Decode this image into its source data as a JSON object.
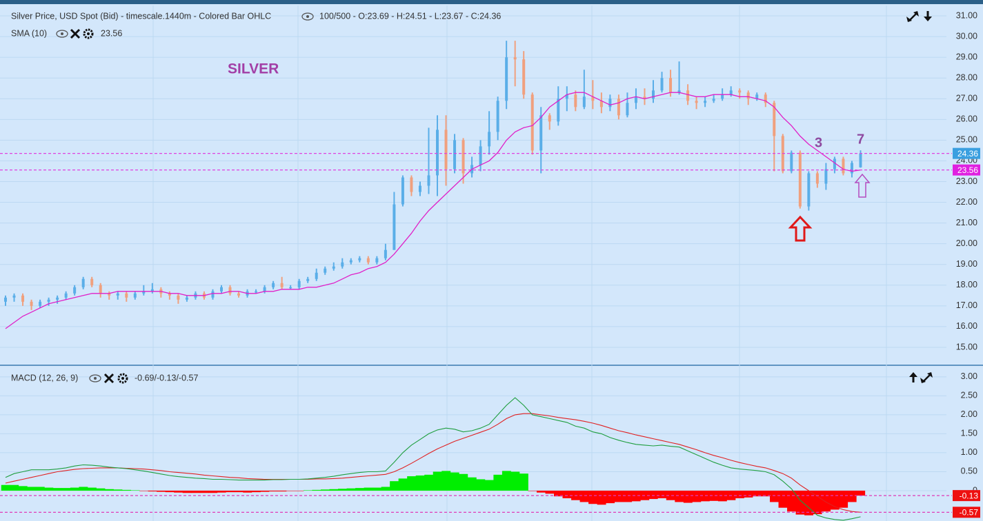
{
  "chart_data": [
    {
      "type": "ohlc",
      "title": "Silver Price, USD Spot (Bid) - timescale.1440m - Colored Bar OHLC",
      "subtitle": "100/500 - O:23.69 - H:24.51 - L:23.67 - C:24.36",
      "annotations": [
        "SILVER",
        "3",
        "7"
      ],
      "ylim": [
        14.2,
        31.5
      ],
      "yticks": [
        {
          "value": 15,
          "label": "15.00"
        },
        {
          "value": 16,
          "label": "16.00"
        },
        {
          "value": 17,
          "label": "17.00"
        },
        {
          "value": 18,
          "label": "18.00"
        },
        {
          "value": 19,
          "label": "19.00"
        },
        {
          "value": 20,
          "label": "20.00"
        },
        {
          "value": 21,
          "label": "21.00"
        },
        {
          "value": 22,
          "label": "22.00"
        },
        {
          "value": 23,
          "label": "23.00"
        },
        {
          "value": 24,
          "label": "24.00"
        },
        {
          "value": 25,
          "label": "25.00"
        },
        {
          "value": 26,
          "label": "26.00"
        },
        {
          "value": 27,
          "label": "27.00"
        },
        {
          "value": 28,
          "label": "28.00"
        },
        {
          "value": 29,
          "label": "29.00"
        },
        {
          "value": 30,
          "label": "30.00"
        },
        {
          "value": 31,
          "label": "31.00"
        }
      ],
      "grid": true,
      "series": [
        {
          "up_color": "#5aaee8",
          "down_color": "#f0a07e",
          "open": [
            17.2,
            17.4,
            17.5,
            17.2,
            17.0,
            17.2,
            17.3,
            17.4,
            17.6,
            17.9,
            18.3,
            18.0,
            17.6,
            17.5,
            17.6,
            17.4,
            17.6,
            17.7,
            17.8,
            17.6,
            17.5,
            17.3,
            17.4,
            17.6,
            17.4,
            17.7,
            17.9,
            17.6,
            17.5,
            17.7,
            17.7,
            17.9,
            18.1,
            17.9,
            17.9,
            18.2,
            18.3,
            18.6,
            18.8,
            18.9,
            19.1,
            19.2,
            19.3,
            19.1,
            19.3,
            19.7,
            21.9,
            23.2,
            22.5,
            22.8,
            23.3,
            25.5,
            23.6,
            25.0,
            23.4,
            23.8,
            24.7,
            25.4,
            26.9,
            29.0,
            28.9,
            27.2,
            24.5,
            26.2,
            25.9,
            27.0,
            27.2,
            26.6,
            27.1,
            26.9,
            26.6,
            27.0,
            26.2,
            26.8,
            27.1,
            27.0,
            27.4,
            28.0,
            27.3,
            27.4,
            26.9,
            26.8,
            26.9,
            27.0,
            27.2,
            27.4,
            27.3,
            27.0,
            27.2,
            26.8,
            25.2,
            23.5,
            24.4,
            21.8,
            23.4,
            22.9,
            23.6,
            24.1,
            23.4,
            23.69
          ],
          "high": [
            17.5,
            17.6,
            17.6,
            17.3,
            17.3,
            17.4,
            17.5,
            17.7,
            18.0,
            18.4,
            18.4,
            18.1,
            17.7,
            17.7,
            17.7,
            17.7,
            18.0,
            18.1,
            17.9,
            17.7,
            17.6,
            17.5,
            17.7,
            17.7,
            17.8,
            18.0,
            18.0,
            17.7,
            17.8,
            17.8,
            18.0,
            18.2,
            18.4,
            18.0,
            18.3,
            18.4,
            18.8,
            18.9,
            19.1,
            19.3,
            19.3,
            19.4,
            19.4,
            19.4,
            20.0,
            22.5,
            23.3,
            23.3,
            23.0,
            25.6,
            26.2,
            26.2,
            25.3,
            25.1,
            24.2,
            25.0,
            26.4,
            27.1,
            29.8,
            29.8,
            29.3,
            27.3,
            26.6,
            26.3,
            27.6,
            27.6,
            27.4,
            28.4,
            27.9,
            27.3,
            27.2,
            27.2,
            27.3,
            27.5,
            27.5,
            27.9,
            28.3,
            28.4,
            28.8,
            27.7,
            27.1,
            27.1,
            27.2,
            27.5,
            27.6,
            27.5,
            27.4,
            27.3,
            27.3,
            26.9,
            25.3,
            24.5,
            24.5,
            23.5,
            23.5,
            23.9,
            24.2,
            24.2,
            24.0,
            24.51
          ],
          "low": [
            17.0,
            17.2,
            17.0,
            16.8,
            16.9,
            17.0,
            17.1,
            17.3,
            17.5,
            17.8,
            17.9,
            17.4,
            17.3,
            17.3,
            17.2,
            17.3,
            17.5,
            17.6,
            17.4,
            17.3,
            17.1,
            17.2,
            17.3,
            17.3,
            17.3,
            17.6,
            17.5,
            17.4,
            17.4,
            17.6,
            17.6,
            17.8,
            17.8,
            17.8,
            17.8,
            18.1,
            18.2,
            18.5,
            18.7,
            18.8,
            19.0,
            19.1,
            19.0,
            19.0,
            19.2,
            19.7,
            21.8,
            22.3,
            22.3,
            22.4,
            22.3,
            22.8,
            23.4,
            22.9,
            23.2,
            23.5,
            24.3,
            25.0,
            26.5,
            27.6,
            27.0,
            24.3,
            23.4,
            25.5,
            25.7,
            26.4,
            26.4,
            26.5,
            26.5,
            26.3,
            26.4,
            26.0,
            26.1,
            26.5,
            26.7,
            26.8,
            27.3,
            27.1,
            27.2,
            26.7,
            26.5,
            26.6,
            26.8,
            26.9,
            27.1,
            27.0,
            26.7,
            26.9,
            26.6,
            23.5,
            23.4,
            23.4,
            21.7,
            21.6,
            22.7,
            22.6,
            23.4,
            23.3,
            23.2,
            23.67
          ],
          "close": [
            17.4,
            17.5,
            17.2,
            17.0,
            17.2,
            17.3,
            17.4,
            17.6,
            17.9,
            18.3,
            18.0,
            17.6,
            17.5,
            17.6,
            17.4,
            17.6,
            17.7,
            17.8,
            17.6,
            17.5,
            17.3,
            17.4,
            17.6,
            17.4,
            17.7,
            17.9,
            17.6,
            17.5,
            17.7,
            17.7,
            17.9,
            18.1,
            17.9,
            17.9,
            18.2,
            18.3,
            18.6,
            18.8,
            18.9,
            19.1,
            19.2,
            19.3,
            19.1,
            19.3,
            19.7,
            21.9,
            23.2,
            22.5,
            22.8,
            23.3,
            25.5,
            23.6,
            25.0,
            23.4,
            23.8,
            24.7,
            25.4,
            26.9,
            29.0,
            28.9,
            27.2,
            24.5,
            26.2,
            25.9,
            27.0,
            27.2,
            26.6,
            27.1,
            26.9,
            26.6,
            27.0,
            26.2,
            26.8,
            27.1,
            27.0,
            27.4,
            28.0,
            27.3,
            27.4,
            26.9,
            26.8,
            26.9,
            27.0,
            27.2,
            27.4,
            27.3,
            27.0,
            27.2,
            26.8,
            25.2,
            23.5,
            24.4,
            21.8,
            23.4,
            22.9,
            23.6,
            24.1,
            23.4,
            23.9,
            24.36
          ]
        },
        {
          "name": "SMA (10)",
          "color": "#e020c8",
          "values": [
            15.9,
            16.2,
            16.5,
            16.7,
            16.9,
            17.1,
            17.2,
            17.3,
            17.4,
            17.5,
            17.6,
            17.6,
            17.6,
            17.7,
            17.7,
            17.7,
            17.7,
            17.7,
            17.7,
            17.6,
            17.6,
            17.5,
            17.5,
            17.5,
            17.6,
            17.6,
            17.7,
            17.7,
            17.6,
            17.6,
            17.7,
            17.7,
            17.8,
            17.8,
            17.8,
            17.9,
            17.9,
            18.0,
            18.1,
            18.3,
            18.5,
            18.6,
            18.8,
            18.9,
            19.1,
            19.5,
            20.0,
            20.5,
            21.1,
            21.6,
            22.0,
            22.4,
            22.8,
            23.2,
            23.6,
            23.8,
            24.0,
            24.4,
            25.0,
            25.4,
            25.6,
            25.7,
            26.1,
            26.6,
            26.9,
            27.2,
            27.3,
            27.3,
            27.1,
            26.9,
            26.7,
            26.8,
            27.0,
            27.1,
            27.0,
            27.1,
            27.2,
            27.3,
            27.3,
            27.2,
            27.1,
            27.1,
            27.2,
            27.2,
            27.2,
            27.1,
            27.1,
            27.0,
            26.9,
            26.6,
            26.1,
            25.7,
            25.2,
            24.8,
            24.5,
            24.2,
            23.9,
            23.6,
            23.5,
            23.56
          ]
        }
      ],
      "price_levels": [
        {
          "value": 24.36,
          "color": "#3a9fe0"
        },
        {
          "value": 23.56,
          "color": "#e020e0"
        }
      ]
    },
    {
      "type": "macd",
      "title": "MACD (12, 26, 9)",
      "subtitle": "-0.69/-0.13/-0.57",
      "ylim": [
        -0.8,
        3.27
      ],
      "yticks": [
        0,
        {
          "value": 0.5,
          "label": "0.50"
        },
        {
          "value": 1,
          "label": "1.00"
        },
        {
          "value": 1.5,
          "label": "1.50"
        },
        {
          "value": 2,
          "label": "2.00"
        },
        {
          "value": 2.5,
          "label": "2.50"
        },
        {
          "value": 3,
          "label": "3.00"
        }
      ],
      "series": [
        {
          "color": "#1e9e3e",
          "values": [
            0.35,
            0.45,
            0.5,
            0.55,
            0.55,
            0.55,
            0.57,
            0.6,
            0.65,
            0.68,
            0.67,
            0.65,
            0.62,
            0.6,
            0.58,
            0.55,
            0.52,
            0.48,
            0.44,
            0.4,
            0.37,
            0.35,
            0.33,
            0.32,
            0.3,
            0.3,
            0.29,
            0.28,
            0.28,
            0.28,
            0.28,
            0.29,
            0.29,
            0.3,
            0.3,
            0.31,
            0.33,
            0.35,
            0.38,
            0.42,
            0.45,
            0.48,
            0.5,
            0.5,
            0.52,
            0.75,
            1.0,
            1.2,
            1.35,
            1.5,
            1.6,
            1.65,
            1.62,
            1.55,
            1.58,
            1.65,
            1.75,
            2.0,
            2.25,
            2.45,
            2.25,
            2.0,
            1.95,
            1.9,
            1.85,
            1.8,
            1.7,
            1.65,
            1.55,
            1.5,
            1.4,
            1.33,
            1.27,
            1.22,
            1.2,
            1.18,
            1.2,
            1.17,
            1.15,
            1.05,
            0.95,
            0.85,
            0.75,
            0.67,
            0.6,
            0.57,
            0.55,
            0.53,
            0.5,
            0.42,
            0.25,
            0.05,
            -0.25,
            -0.45,
            -0.65,
            -0.72,
            -0.76,
            -0.78,
            -0.74,
            -0.69
          ]
        },
        {
          "color": "#e02020",
          "values": [
            0.2,
            0.25,
            0.3,
            0.35,
            0.4,
            0.45,
            0.5,
            0.53,
            0.56,
            0.58,
            0.59,
            0.6,
            0.6,
            0.6,
            0.59,
            0.58,
            0.57,
            0.55,
            0.53,
            0.5,
            0.48,
            0.46,
            0.44,
            0.41,
            0.39,
            0.37,
            0.35,
            0.34,
            0.32,
            0.31,
            0.3,
            0.3,
            0.3,
            0.3,
            0.3,
            0.3,
            0.31,
            0.31,
            0.32,
            0.33,
            0.35,
            0.37,
            0.39,
            0.41,
            0.43,
            0.5,
            0.6,
            0.72,
            0.85,
            0.98,
            1.1,
            1.2,
            1.3,
            1.38,
            1.46,
            1.54,
            1.62,
            1.75,
            1.9,
            2.0,
            2.03,
            2.03,
            2.0,
            1.97,
            1.93,
            1.9,
            1.87,
            1.83,
            1.78,
            1.72,
            1.65,
            1.58,
            1.53,
            1.47,
            1.42,
            1.37,
            1.32,
            1.27,
            1.22,
            1.15,
            1.08,
            1.0,
            0.93,
            0.87,
            0.8,
            0.74,
            0.69,
            0.64,
            0.6,
            0.53,
            0.45,
            0.33,
            0.15,
            0,
            -0.15,
            -0.3,
            -0.42,
            -0.5,
            -0.55,
            -0.57
          ]
        },
        {
          "up_color": "#00ee00",
          "down_color": "#ff0000",
          "values": [
            0.15,
            0.15,
            0.12,
            0.1,
            0.1,
            0.08,
            0.07,
            0.07,
            0.08,
            0.1,
            0.08,
            0.06,
            0.04,
            0.03,
            0.02,
            0.01,
            -0.01,
            -0.02,
            -0.03,
            -0.04,
            -0.05,
            -0.06,
            -0.06,
            -0.06,
            -0.06,
            -0.05,
            -0.04,
            -0.04,
            -0.05,
            -0.04,
            -0.03,
            -0.02,
            -0.02,
            -0.01,
            -0.01,
            0.01,
            0.02,
            0.03,
            0.04,
            0.05,
            0.06,
            0.07,
            0.08,
            0.08,
            0.1,
            0.25,
            0.32,
            0.38,
            0.4,
            0.42,
            0.5,
            0.52,
            0.48,
            0.44,
            0.35,
            0.3,
            0.28,
            0.42,
            0.52,
            0.5,
            0.45,
            -0.01,
            -0.05,
            -0.08,
            -0.15,
            -0.2,
            -0.25,
            -0.3,
            -0.35,
            -0.37,
            -0.33,
            -0.3,
            -0.3,
            -0.28,
            -0.25,
            -0.22,
            -0.2,
            -0.25,
            -0.3,
            -0.32,
            -0.3,
            -0.28,
            -0.27,
            -0.28,
            -0.25,
            -0.2,
            -0.18,
            -0.15,
            -0.15,
            -0.3,
            -0.45,
            -0.55,
            -0.63,
            -0.65,
            -0.62,
            -0.55,
            -0.5,
            -0.45,
            -0.3,
            -0.13
          ]
        }
      ],
      "levels": [
        {
          "value": -0.13,
          "color": "#ee1010"
        },
        {
          "value": -0.57,
          "color": "#ee1010"
        }
      ]
    }
  ]
}
